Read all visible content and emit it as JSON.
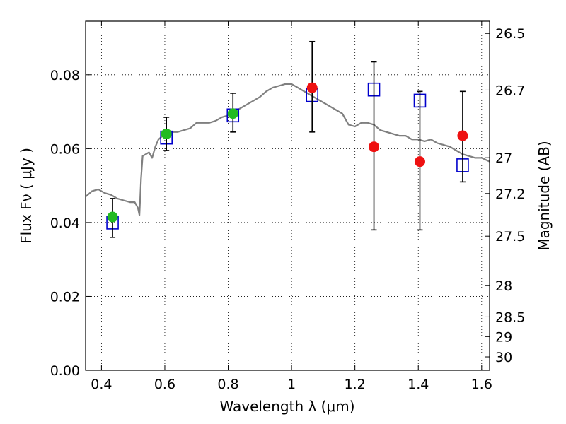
{
  "chart_data": {
    "type": "scatter",
    "xlabel": "Wavelength  λ (μm)",
    "ylabel": "Flux  Fν  ( μJy )",
    "y2label": "Magnitude (AB)",
    "xlim": [
      0.35,
      1.625
    ],
    "ylim": [
      0.0,
      0.0945
    ],
    "x_ticks": [
      0.4,
      0.6,
      0.8,
      1.0,
      1.2,
      1.4,
      1.6
    ],
    "x_tick_labels": [
      "0.4",
      "0.6",
      "0.8",
      "1",
      "1.2",
      "1.4",
      "1.6"
    ],
    "y_ticks": [
      0.0,
      0.02,
      0.04,
      0.06,
      0.08
    ],
    "y_tick_labels": [
      "0.00",
      "0.02",
      "0.04",
      "0.06",
      "0.08"
    ],
    "y2_ticks": [
      26.5,
      26.7,
      27,
      27.2,
      27.5,
      28,
      28.5,
      29,
      30
    ],
    "y2_tick_labels": [
      "26.5",
      "26.7",
      "27",
      "27.2",
      "27.5",
      "28",
      "28.5",
      "29",
      "30"
    ],
    "grid": true,
    "colors": {
      "template": "#808080",
      "model": "#0000cc",
      "optical": "#22bb22",
      "nir": "#ee1111",
      "errorbar": "#000000"
    },
    "series": [
      {
        "kind": "line",
        "x": [
          0.35,
          0.37,
          0.39,
          0.41,
          0.43,
          0.45,
          0.47,
          0.49,
          0.505,
          0.515,
          0.52,
          0.525,
          0.53,
          0.55,
          0.56,
          0.57,
          0.58,
          0.6,
          0.62,
          0.64,
          0.66,
          0.68,
          0.7,
          0.72,
          0.74,
          0.76,
          0.78,
          0.8,
          0.82,
          0.84,
          0.86,
          0.88,
          0.9,
          0.92,
          0.94,
          0.96,
          0.98,
          1.0,
          1.02,
          1.04,
          1.06,
          1.08,
          1.1,
          1.12,
          1.14,
          1.16,
          1.18,
          1.2,
          1.22,
          1.24,
          1.26,
          1.28,
          1.3,
          1.32,
          1.34,
          1.36,
          1.38,
          1.4,
          1.42,
          1.44,
          1.46,
          1.48,
          1.5,
          1.52,
          1.54,
          1.56,
          1.58,
          1.6,
          1.625
        ],
        "y": [
          0.047,
          0.0485,
          0.049,
          0.048,
          0.0475,
          0.0465,
          0.046,
          0.0455,
          0.0455,
          0.044,
          0.042,
          0.052,
          0.058,
          0.059,
          0.0575,
          0.0605,
          0.0625,
          0.064,
          0.0645,
          0.0645,
          0.065,
          0.0655,
          0.067,
          0.067,
          0.067,
          0.0675,
          0.0685,
          0.069,
          0.07,
          0.071,
          0.072,
          0.073,
          0.074,
          0.0755,
          0.0765,
          0.077,
          0.0775,
          0.0775,
          0.0765,
          0.0755,
          0.0745,
          0.0735,
          0.0725,
          0.0715,
          0.0705,
          0.0695,
          0.0665,
          0.066,
          0.067,
          0.067,
          0.0665,
          0.065,
          0.0645,
          0.064,
          0.0635,
          0.0635,
          0.0625,
          0.0625,
          0.062,
          0.0625,
          0.0615,
          0.061,
          0.0605,
          0.0595,
          0.0585,
          0.058,
          0.0575,
          0.0575,
          0.0565
        ]
      },
      {
        "kind": "markers",
        "marker": "square-open",
        "x": [
          0.435,
          0.605,
          0.815,
          1.065,
          1.26,
          1.405,
          1.54
        ],
        "y": [
          0.04,
          0.063,
          0.069,
          0.0745,
          0.076,
          0.073,
          0.0555
        ]
      },
      {
        "kind": "markers",
        "marker": "circle",
        "x": [
          0.435,
          0.605,
          0.815
        ],
        "y": [
          0.0415,
          0.064,
          0.0695
        ],
        "yerr_low": [
          0.036,
          0.0595,
          0.0645
        ],
        "yerr_high": [
          0.0465,
          0.0685,
          0.075
        ]
      },
      {
        "kind": "markers",
        "marker": "circle",
        "x": [
          1.065,
          1.26,
          1.405,
          1.54
        ],
        "y": [
          0.0765,
          0.0605,
          0.0565,
          0.0635
        ],
        "yerr_low": [
          0.0645,
          0.038,
          0.038,
          0.051
        ],
        "yerr_high": [
          0.089,
          0.0835,
          0.0755,
          0.0755
        ]
      }
    ]
  }
}
